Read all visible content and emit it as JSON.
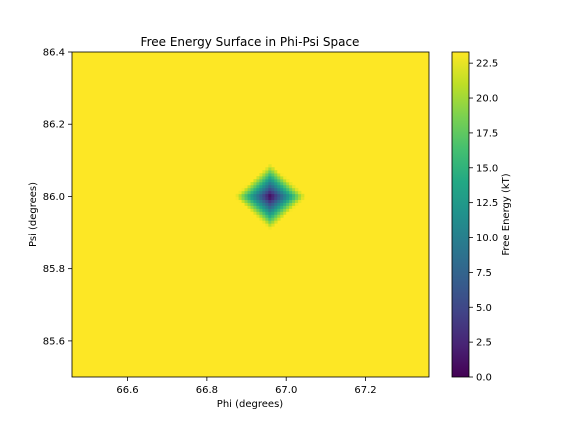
{
  "chart_data": {
    "type": "heatmap",
    "title": "Free Energy Surface in Phi-Psi Space",
    "xlabel": "Phi (degrees)",
    "ylabel": "Psi (degrees)",
    "xlim": [
      66.46,
      67.36
    ],
    "ylim": [
      85.5,
      86.4
    ],
    "x_ticks": [
      {
        "value": 66.6,
        "label": "66.6"
      },
      {
        "value": 66.8,
        "label": "66.8"
      },
      {
        "value": 67.0,
        "label": "67.0"
      },
      {
        "value": 67.2,
        "label": "67.2"
      }
    ],
    "y_ticks": [
      {
        "value": 85.6,
        "label": "85.6"
      },
      {
        "value": 85.8,
        "label": "85.8"
      },
      {
        "value": 86.0,
        "label": "86.0"
      },
      {
        "value": 86.2,
        "label": "86.2"
      },
      {
        "value": 86.4,
        "label": "86.4"
      }
    ],
    "surface": {
      "minimum": {
        "phi": 66.96,
        "psi": 86.0,
        "value": 0.0
      },
      "maximum_value": 23.3,
      "basin_halfwidth_phi": 0.09,
      "basin_halfwidth_psi": 0.09,
      "shape": "diamond (L1 distance, clipped at maximum)"
    },
    "colorbar": {
      "label": "Free Energy (kT)",
      "colormap": "viridis",
      "vmin": 0.0,
      "vmax": 23.3,
      "ticks": [
        {
          "value": 0.0,
          "label": "0.0"
        },
        {
          "value": 2.5,
          "label": "2.5"
        },
        {
          "value": 5.0,
          "label": "5.0"
        },
        {
          "value": 7.5,
          "label": "7.5"
        },
        {
          "value": 10.0,
          "label": "10.0"
        },
        {
          "value": 12.5,
          "label": "12.5"
        },
        {
          "value": 15.0,
          "label": "15.0"
        },
        {
          "value": 17.5,
          "label": "17.5"
        },
        {
          "value": 20.0,
          "label": "20.0"
        },
        {
          "value": 22.5,
          "label": "22.5"
        }
      ]
    }
  }
}
